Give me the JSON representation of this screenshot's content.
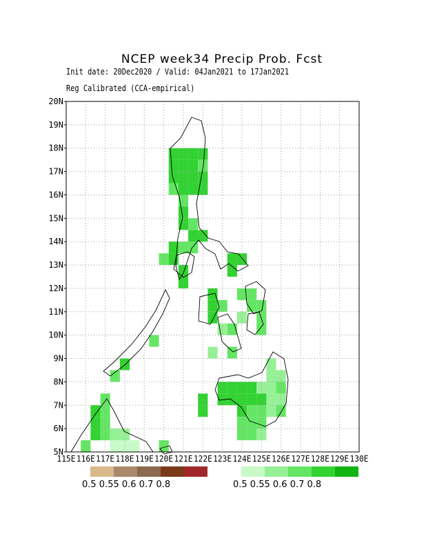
{
  "title": "NCEP week34 Precip Prob. Fcst",
  "subtitle_line1": "Init date: 20Dec2020 / Valid: 04Jan2021 to 17Jan2021",
  "subtitle_line2": "Reg Calibrated (CCA-empirical)",
  "lat_ticks": [
    "5N",
    "6N",
    "7N",
    "8N",
    "9N",
    "10N",
    "11N",
    "12N",
    "13N",
    "14N",
    "15N",
    "16N",
    "17N",
    "18N",
    "19N",
    "20N"
  ],
  "lon_ticks": [
    "115E",
    "116E",
    "117E",
    "118E",
    "119E",
    "120E",
    "121E",
    "122E",
    "123E",
    "124E",
    "125E",
    "126E",
    "127E",
    "128E",
    "129E",
    "130E"
  ],
  "dry_colors": [
    "#d9b88a",
    "#a98a6b",
    "#8c6a4f",
    "#7a3a1a",
    "#a0282a"
  ],
  "wet_colors": [
    "#c8fac8",
    "#96f096",
    "#64e664",
    "#32d232",
    "#12b412"
  ],
  "dry_labels": "0.5 0.55 0.6  0.7  0.8",
  "wet_labels": "0.5 0.55 0.6  0.7  0.8",
  "chart_data": {
    "type": "heatmap",
    "title": "NCEP week34 Precip Prob. Fcst",
    "lat_range": [
      5,
      20
    ],
    "lon_range": [
      115,
      130
    ],
    "grid_step_deg": 0.5,
    "categories": [
      "<0.5",
      "0.5",
      "0.55",
      "0.6",
      "0.7",
      "0.8"
    ],
    "cells": [
      [
        120.5,
        17.75,
        4
      ],
      [
        121.0,
        17.75,
        4
      ],
      [
        121.5,
        17.75,
        4
      ],
      [
        122.0,
        17.75,
        4
      ],
      [
        120.5,
        17.25,
        4
      ],
      [
        121.0,
        17.25,
        4
      ],
      [
        121.5,
        17.25,
        4
      ],
      [
        122.0,
        17.25,
        3
      ],
      [
        120.5,
        16.75,
        4
      ],
      [
        121.0,
        16.75,
        4
      ],
      [
        121.5,
        16.75,
        4
      ],
      [
        122.0,
        16.75,
        4
      ],
      [
        120.5,
        16.25,
        3
      ],
      [
        121.0,
        16.25,
        4
      ],
      [
        121.5,
        16.25,
        4
      ],
      [
        122.0,
        16.25,
        4
      ],
      [
        121.0,
        15.75,
        3
      ],
      [
        121.0,
        15.25,
        4
      ],
      [
        121.0,
        14.75,
        4
      ],
      [
        121.5,
        14.25,
        4
      ],
      [
        121.5,
        13.75,
        3
      ],
      [
        122.0,
        14.25,
        4
      ],
      [
        120.5,
        13.75,
        4
      ],
      [
        121.0,
        13.75,
        3
      ],
      [
        120.0,
        13.25,
        3
      ],
      [
        120.5,
        13.25,
        4
      ],
      [
        121.0,
        12.75,
        4
      ],
      [
        121.0,
        12.25,
        4
      ],
      [
        121.5,
        14.75,
        3
      ],
      [
        123.5,
        13.25,
        4
      ],
      [
        124.0,
        13.25,
        4
      ],
      [
        123.5,
        12.75,
        4
      ],
      [
        122.5,
        11.75,
        4
      ],
      [
        122.5,
        11.25,
        4
      ],
      [
        123.0,
        11.25,
        3
      ],
      [
        122.5,
        10.75,
        4
      ],
      [
        123.5,
        10.25,
        3
      ],
      [
        123.0,
        10.25,
        2
      ],
      [
        122.5,
        9.25,
        2
      ],
      [
        123.5,
        9.25,
        3
      ],
      [
        124.0,
        11.75,
        3
      ],
      [
        124.5,
        11.75,
        3
      ],
      [
        124.5,
        11.25,
        3
      ],
      [
        125.0,
        11.25,
        3
      ],
      [
        125.0,
        10.75,
        3
      ],
      [
        125.0,
        10.25,
        3
      ],
      [
        124.0,
        10.75,
        2
      ],
      [
        123.0,
        7.75,
        4
      ],
      [
        123.5,
        7.75,
        4
      ],
      [
        124.0,
        7.75,
        4
      ],
      [
        124.5,
        7.75,
        4
      ],
      [
        125.0,
        7.75,
        2
      ],
      [
        125.5,
        7.75,
        2
      ],
      [
        126.0,
        7.75,
        3
      ],
      [
        123.0,
        7.25,
        4
      ],
      [
        123.5,
        7.25,
        4
      ],
      [
        124.0,
        7.25,
        4
      ],
      [
        124.5,
        7.25,
        4
      ],
      [
        125.0,
        7.25,
        4
      ],
      [
        125.5,
        7.25,
        2
      ],
      [
        126.0,
        7.25,
        2
      ],
      [
        124.0,
        6.75,
        4
      ],
      [
        124.5,
        6.75,
        3
      ],
      [
        125.0,
        6.75,
        3
      ],
      [
        125.5,
        6.75,
        2
      ],
      [
        126.0,
        6.75,
        3
      ],
      [
        124.0,
        6.25,
        3
      ],
      [
        124.5,
        6.25,
        3
      ],
      [
        125.0,
        6.25,
        3
      ],
      [
        124.0,
        5.75,
        3
      ],
      [
        124.5,
        5.75,
        3
      ],
      [
        125.0,
        5.75,
        2
      ],
      [
        122.0,
        7.25,
        4
      ],
      [
        122.0,
        6.75,
        4
      ],
      [
        125.5,
        8.25,
        2
      ],
      [
        126.0,
        8.25,
        2
      ],
      [
        125.5,
        8.75,
        2
      ],
      [
        116.5,
        6.75,
        4
      ],
      [
        116.5,
        6.25,
        4
      ],
      [
        116.5,
        5.75,
        4
      ],
      [
        117.0,
        7.25,
        3
      ],
      [
        117.0,
        6.75,
        3
      ],
      [
        117.0,
        6.25,
        3
      ],
      [
        117.0,
        5.75,
        3
      ],
      [
        117.5,
        5.75,
        2
      ],
      [
        118.0,
        5.75,
        2
      ],
      [
        117.5,
        5.25,
        1
      ],
      [
        118.0,
        5.25,
        1
      ],
      [
        118.5,
        5.25,
        1
      ],
      [
        117.5,
        8.25,
        3
      ],
      [
        118.0,
        8.75,
        4
      ],
      [
        119.5,
        9.75,
        3
      ],
      [
        120.0,
        5.25,
        3
      ],
      [
        116.0,
        5.25,
        3
      ]
    ]
  }
}
